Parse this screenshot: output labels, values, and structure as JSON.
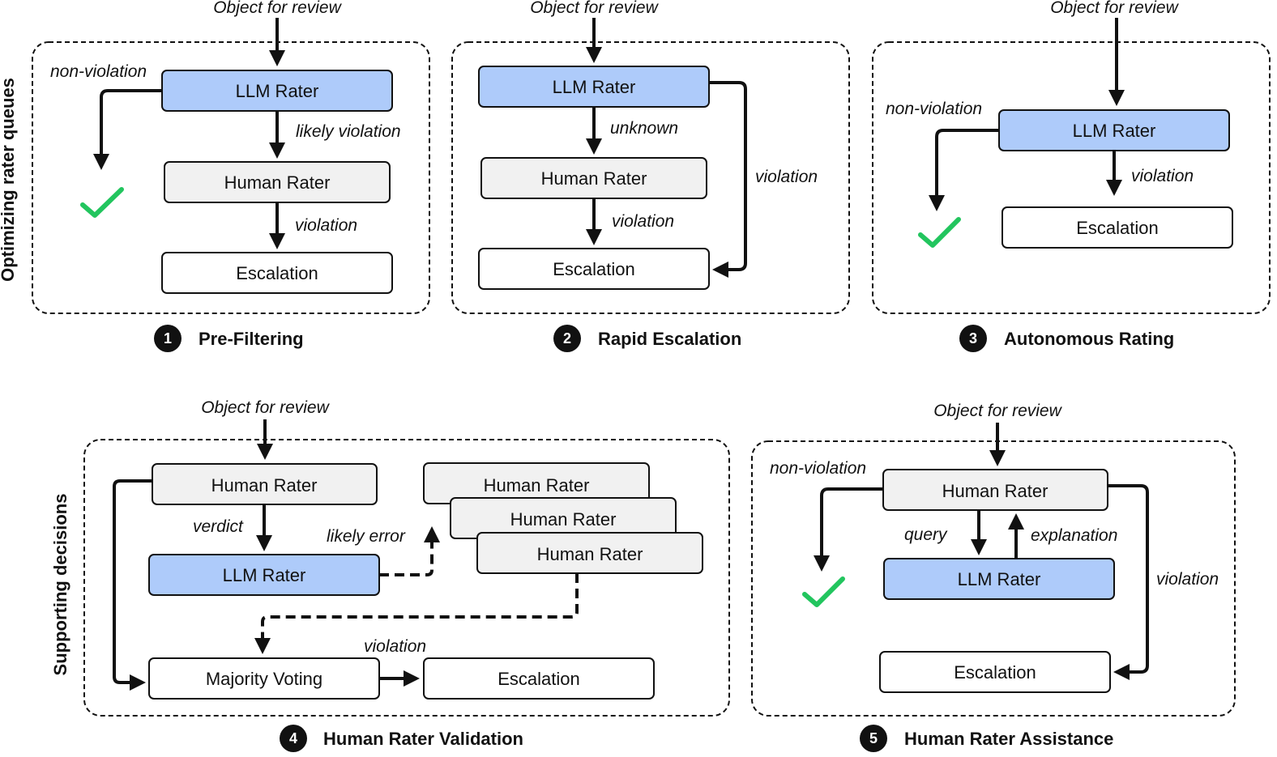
{
  "colors": {
    "llm": "#aecbfa",
    "human": "#f1f1f1",
    "escalation": "#ffffff",
    "check": "#22c55e",
    "line": "#111111"
  },
  "side_labels": {
    "top": "Optimizing rater queues",
    "bottom": "Supporting decisions"
  },
  "panels": [
    {
      "number": "1",
      "title": "Pre-Filtering",
      "input": "Object for review",
      "nodes": {
        "llm": "LLM Rater",
        "human": "Human Rater",
        "escalation": "Escalation"
      },
      "edges": {
        "nonviolation": "non-violation",
        "likely": "likely violation",
        "violation": "violation"
      }
    },
    {
      "number": "2",
      "title": "Rapid Escalation",
      "input": "Object for review",
      "nodes": {
        "llm": "LLM Rater",
        "human": "Human Rater",
        "escalation": "Escalation"
      },
      "edges": {
        "unknown": "unknown",
        "violation_human": "violation",
        "violation_llm": "violation"
      }
    },
    {
      "number": "3",
      "title": "Autonomous Rating",
      "input": "Object for review",
      "nodes": {
        "llm": "LLM Rater",
        "escalation": "Escalation"
      },
      "edges": {
        "nonviolation": "non-violation",
        "violation": "violation"
      }
    },
    {
      "number": "4",
      "title": "Human Rater Validation",
      "input": "Object for review",
      "nodes": {
        "human": "Human Rater",
        "llm": "LLM Rater",
        "stack": [
          "Human Rater",
          "Human Rater",
          "Human Rater"
        ],
        "majority": "Majority Voting",
        "escalation": "Escalation"
      },
      "edges": {
        "verdict": "verdict",
        "likely_error": "likely error",
        "violation": "violation"
      }
    },
    {
      "number": "5",
      "title": "Human Rater Assistance",
      "input": "Object for review",
      "nodes": {
        "human": "Human Rater",
        "llm": "LLM Rater",
        "escalation": "Escalation"
      },
      "edges": {
        "nonviolation": "non-violation",
        "query": "query",
        "explanation": "explanation",
        "violation": "violation"
      }
    }
  ]
}
